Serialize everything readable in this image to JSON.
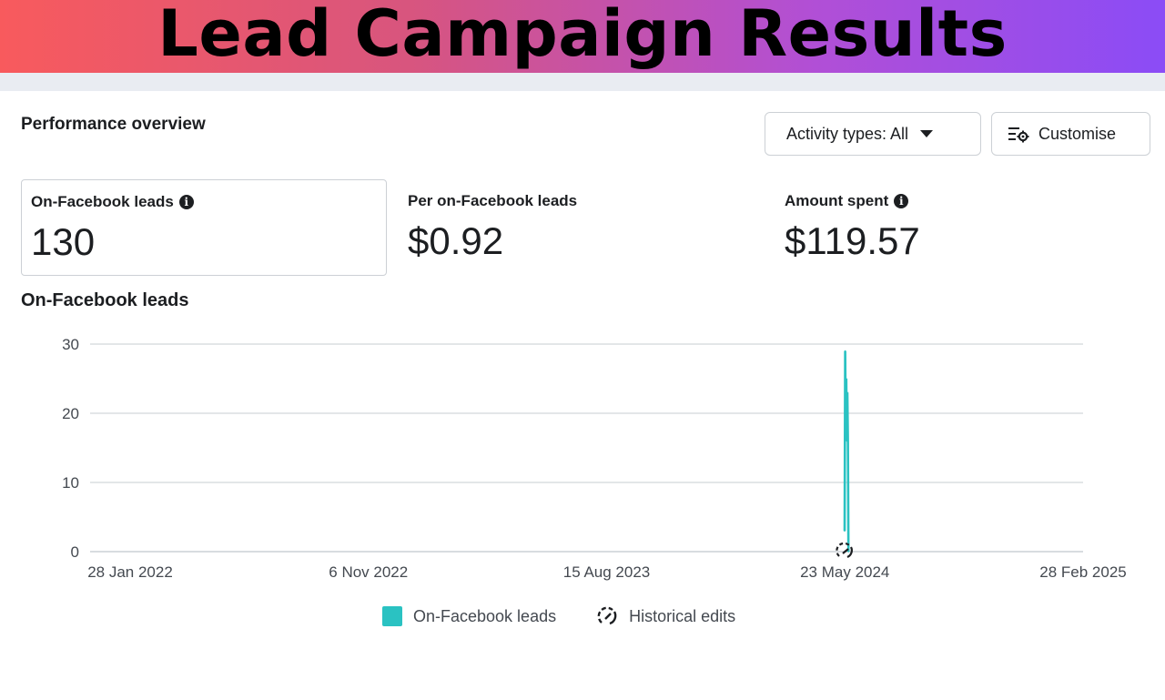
{
  "banner": {
    "title": "Lead Campaign Results"
  },
  "header": {
    "title": "Performance overview",
    "activity_button": "Activity types: All",
    "customise_button": "Customise"
  },
  "metrics": [
    {
      "label": "On-Facebook leads",
      "value": "130",
      "info": true
    },
    {
      "label": "Per on-Facebook leads",
      "value": "$0.92",
      "info": false
    },
    {
      "label": "Amount spent",
      "value": "$119.57",
      "info": true
    }
  ],
  "chart": {
    "title": "On-Facebook leads"
  },
  "legend": {
    "series_label": "On-Facebook leads",
    "edits_label": "Historical edits"
  },
  "colors": {
    "series": "#2ac2c2",
    "grid": "#dadde1",
    "text": "#1c1e21"
  },
  "chart_data": {
    "type": "line",
    "title": "On-Facebook leads",
    "xlabel": "",
    "ylabel": "",
    "ylim": [
      0,
      30
    ],
    "yticks": [
      0,
      10,
      20,
      30
    ],
    "xticks": [
      "28 Jan 2022",
      "6 Nov 2022",
      "15 Aug 2023",
      "23 May 2024",
      "28 Feb 2025"
    ],
    "x_range": [
      "2022-01-28",
      "2025-02-28"
    ],
    "grid": true,
    "legend": "bottom",
    "series": [
      {
        "name": "On-Facebook leads",
        "x": [
          "2024-05-24",
          "2024-05-25",
          "2024-05-26",
          "2024-05-27",
          "2024-05-28",
          "2024-05-29",
          "2024-05-30",
          "2024-05-31"
        ],
        "y": [
          3,
          29,
          18,
          25,
          16,
          23,
          16,
          0
        ]
      }
    ],
    "annotations": [
      {
        "label": "Historical edits",
        "x": "2024-05-24",
        "icon": "historical-edits-icon"
      }
    ]
  }
}
